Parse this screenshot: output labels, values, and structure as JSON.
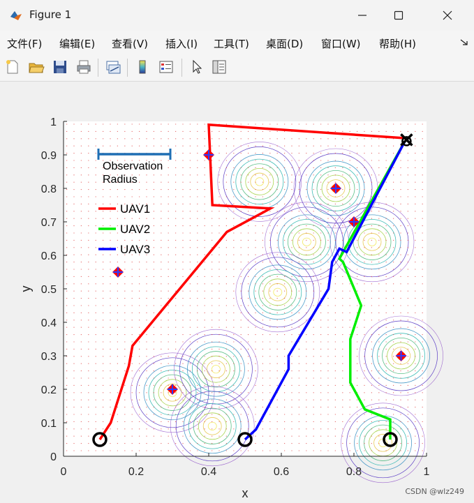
{
  "window": {
    "title": "Figure 1"
  },
  "menu": [
    "文件(F)",
    "编辑(E)",
    "查看(V)",
    "插入(I)",
    "工具(T)",
    "桌面(D)",
    "窗口(W)",
    "帮助(H)"
  ],
  "toolbar": [
    "new-figure-icon",
    "open-icon",
    "save-icon",
    "print-icon",
    "link-plot-icon",
    "colorbar-icon",
    "legend-icon",
    "pointer-icon",
    "property-inspector-icon"
  ],
  "chart_data": {
    "type": "line",
    "xlabel": "x",
    "ylabel": "y",
    "xlim": [
      0,
      1
    ],
    "ylim": [
      0,
      1
    ],
    "xticks": [
      "0",
      "0.2",
      "0.4",
      "0.6",
      "0.8",
      "1"
    ],
    "yticks": [
      "0",
      "0.1",
      "0.2",
      "0.3",
      "0.4",
      "0.5",
      "0.6",
      "0.7",
      "0.8",
      "0.9",
      "1"
    ],
    "grid_dots": true,
    "legend_placement": "top-left",
    "observation_label": [
      "Observation",
      "Radius"
    ],
    "series": [
      {
        "name": "UAV1",
        "color": "#ff0000",
        "x": [
          0.1,
          0.13,
          0.18,
          0.19,
          0.45,
          0.57,
          0.41,
          0.4,
          0.94
        ],
        "y": [
          0.05,
          0.1,
          0.27,
          0.33,
          0.67,
          0.74,
          0.75,
          0.99,
          0.95
        ]
      },
      {
        "name": "UAV2",
        "color": "#00ee00",
        "x": [
          0.9,
          0.9,
          0.83,
          0.79,
          0.79,
          0.82,
          0.77,
          0.76,
          0.94
        ],
        "y": [
          0.05,
          0.11,
          0.14,
          0.22,
          0.35,
          0.45,
          0.58,
          0.59,
          0.94
        ]
      },
      {
        "name": "UAV3",
        "color": "#0000ff",
        "x": [
          0.5,
          0.53,
          0.62,
          0.62,
          0.73,
          0.74,
          0.76,
          0.78,
          0.94
        ],
        "y": [
          0.05,
          0.08,
          0.26,
          0.3,
          0.5,
          0.58,
          0.62,
          0.61,
          0.94
        ]
      }
    ],
    "start_points": {
      "x": [
        0.1,
        0.5,
        0.9
      ],
      "y": [
        0.05,
        0.05,
        0.05
      ]
    },
    "goal_point": {
      "x": 0.945,
      "y": 0.945
    },
    "targets": {
      "x": [
        0.15,
        0.3,
        0.4,
        0.75,
        0.8,
        0.93
      ],
      "y": [
        0.55,
        0.2,
        0.9,
        0.8,
        0.7,
        0.3
      ]
    },
    "contour_peaks": {
      "x": [
        0.54,
        0.75,
        0.67,
        0.85,
        0.59,
        0.3,
        0.42,
        0.41,
        0.93,
        0.88
      ],
      "y": [
        0.82,
        0.8,
        0.64,
        0.64,
        0.49,
        0.19,
        0.26,
        0.09,
        0.3,
        0.04
      ]
    }
  },
  "watermark": "CSDN @wlz249"
}
